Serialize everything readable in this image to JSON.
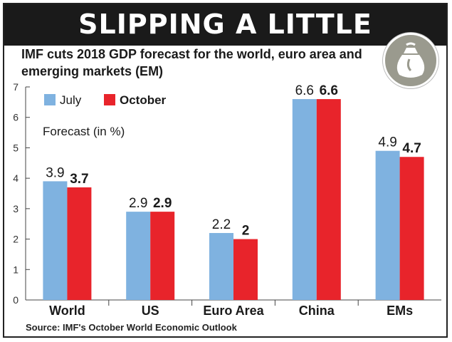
{
  "header": {
    "title": "SLIPPING A LITTLE",
    "subtitle": "IMF cuts 2018 GDP forecast for the world, euro area and emerging markets (EM)"
  },
  "footer": {
    "source": "Source: IMF's October World Economic Outlook"
  },
  "icon": {
    "name": "money-bag-icon"
  },
  "colors": {
    "july": "#7fb2e0",
    "october": "#e8242b",
    "header_bg": "#1a1a1a"
  },
  "chart_data": {
    "type": "bar",
    "categories": [
      "World",
      "US",
      "Euro Area",
      "China",
      "EMs"
    ],
    "series": [
      {
        "name": "July",
        "values": [
          3.9,
          2.9,
          2.2,
          6.6,
          4.9
        ]
      },
      {
        "name": "October",
        "values": [
          3.7,
          2.9,
          2,
          6.6,
          4.7
        ]
      }
    ],
    "data_labels": {
      "July": [
        "3.9",
        "2.9",
        "2.2",
        "6.6",
        "4.9"
      ],
      "October": [
        "3.7",
        "2.9",
        "2",
        "6.6",
        "4.7"
      ]
    },
    "ylabel": "Forecast (in %)",
    "ylim": [
      0,
      7
    ],
    "yticks": [
      "0",
      "1",
      "2",
      "3",
      "4",
      "5",
      "6",
      "7"
    ],
    "grid": false,
    "legend_position": "top-left"
  }
}
